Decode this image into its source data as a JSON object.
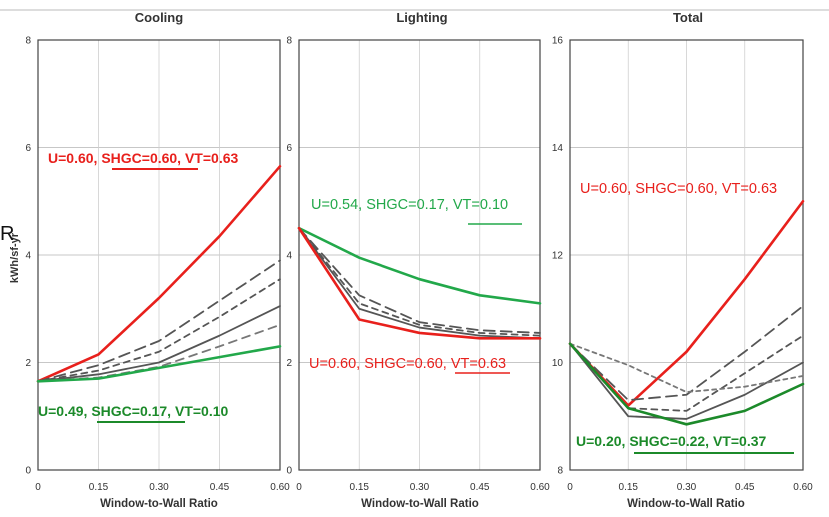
{
  "colors": {
    "red": "#e8201c",
    "green_light": "#22a84a",
    "green_dark": "#1c8a2a",
    "gray": "#555555"
  },
  "y_axis_label": "kWh/sf-yr",
  "y_axis_label_fragment": "R",
  "chart_data": [
    {
      "type": "line",
      "title": "Cooling",
      "xlabel": "Window-to-Wall Ratio",
      "x": [
        0,
        0.15,
        0.3,
        0.45,
        0.6
      ],
      "x_ticks": [
        "0",
        "0.15",
        "0.30",
        "0.45",
        "0.60"
      ],
      "ylim": [
        0,
        8
      ],
      "y_ticks": [
        "0",
        "2",
        "4",
        "6",
        "8"
      ],
      "grid": true,
      "series": [
        {
          "name": "U=0.60, SHGC=0.60, VT=0.63",
          "color": "#e8201c",
          "values": [
            1.65,
            2.15,
            3.2,
            4.35,
            5.65
          ]
        },
        {
          "color": "#555555",
          "dash": "11,6",
          "values": [
            1.65,
            1.95,
            2.4,
            3.15,
            3.9
          ]
        },
        {
          "color": "#555555",
          "dash": "6,5",
          "values": [
            1.65,
            1.85,
            2.2,
            2.85,
            3.55
          ]
        },
        {
          "color": "#555555",
          "dash": "",
          "values": [
            1.65,
            1.78,
            2.0,
            2.5,
            3.05
          ]
        },
        {
          "color": "#777777",
          "dash": "8,6",
          "values": [
            1.65,
            1.72,
            1.92,
            2.3,
            2.7
          ]
        },
        {
          "name": "U=0.49, SHGC=0.17, VT=0.10",
          "color": "#22a84a",
          "values": [
            1.65,
            1.7,
            1.9,
            2.1,
            2.3
          ]
        }
      ],
      "annotations": [
        "U=0.60, SHGC=0.60, VT=0.63",
        "U=0.49, SHGC=0.17, VT=0.10"
      ]
    },
    {
      "type": "line",
      "title": "Lighting",
      "xlabel": "Window-to-Wall Ratio",
      "x": [
        0,
        0.15,
        0.3,
        0.45,
        0.6
      ],
      "x_ticks": [
        "0",
        "0.15",
        "0.30",
        "0.45",
        "0.60"
      ],
      "ylim": [
        0,
        8
      ],
      "y_ticks": [
        "0",
        "2",
        "4",
        "6",
        "8"
      ],
      "grid": true,
      "series": [
        {
          "name": "U=0.54, SHGC=0.17, VT=0.10",
          "color": "#22a84a",
          "values": [
            4.5,
            3.95,
            3.55,
            3.25,
            3.1
          ]
        },
        {
          "color": "#555555",
          "dash": "11,6",
          "values": [
            4.5,
            3.25,
            2.75,
            2.6,
            2.55
          ]
        },
        {
          "color": "#555555",
          "dash": "6,5",
          "values": [
            4.5,
            3.1,
            2.7,
            2.55,
            2.5
          ]
        },
        {
          "color": "#555555",
          "dash": "",
          "values": [
            4.5,
            3.0,
            2.65,
            2.5,
            2.45
          ]
        },
        {
          "name": "U=0.60, SHGC=0.60, VT=0.63",
          "color": "#e8201c",
          "values": [
            4.5,
            2.8,
            2.55,
            2.45,
            2.45
          ]
        }
      ],
      "annotations": [
        "U=0.54, SHGC=0.17, VT=0.10",
        "U=0.60, SHGC=0.60, VT=0.63"
      ]
    },
    {
      "type": "line",
      "title": "Total",
      "xlabel": "Window-to-Wall Ratio",
      "x": [
        0,
        0.15,
        0.3,
        0.45,
        0.6
      ],
      "x_ticks": [
        "0",
        "0.15",
        "0.30",
        "0.45",
        "0.60"
      ],
      "ylim": [
        8,
        16
      ],
      "y_ticks": [
        "8",
        "10",
        "12",
        "14",
        "16"
      ],
      "grid": true,
      "series": [
        {
          "name": "U=0.60, SHGC=0.60, VT=0.63",
          "color": "#e8201c",
          "values": [
            10.35,
            9.2,
            10.2,
            11.55,
            13.0
          ]
        },
        {
          "color": "#555555",
          "dash": "11,6",
          "values": [
            10.35,
            9.3,
            9.4,
            10.2,
            11.05
          ]
        },
        {
          "color": "#555555",
          "dash": "6,5",
          "values": [
            10.35,
            9.15,
            9.1,
            9.8,
            10.5
          ]
        },
        {
          "color": "#555555",
          "dash": "",
          "values": [
            10.35,
            9.0,
            8.95,
            9.4,
            10.0
          ]
        },
        {
          "color": "#777777",
          "dash": "4,4",
          "values": [
            10.35,
            9.95,
            9.45,
            9.55,
            9.75
          ]
        },
        {
          "name": "U=0.20, SHGC=0.22, VT=0.37",
          "color": "#1c8a2a",
          "values": [
            10.35,
            9.15,
            8.85,
            9.1,
            9.6
          ]
        }
      ],
      "annotations": [
        "U=0.60, SHGC=0.60, VT=0.63",
        "U=0.20, SHGC=0.22, VT=0.37"
      ]
    }
  ]
}
